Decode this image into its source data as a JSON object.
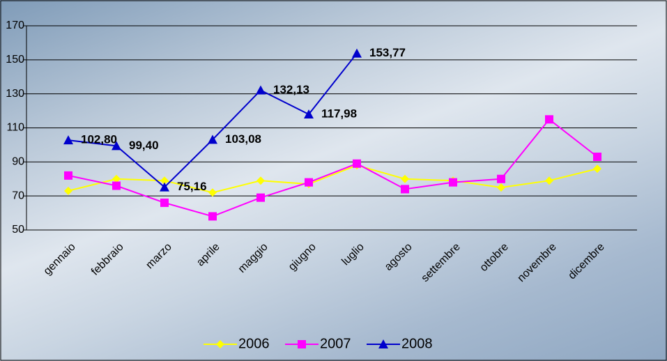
{
  "chart_data": {
    "type": "line",
    "categories": [
      "gennaio",
      "febbraio",
      "marzo",
      "aprile",
      "maggio",
      "giugno",
      "luglio",
      "agosto",
      "settembre",
      "ottobre",
      "novembre",
      "dicembre"
    ],
    "series": [
      {
        "name": "2006",
        "color": "#ffff00",
        "marker": "diamond",
        "values": [
          73,
          80,
          79,
          72,
          79,
          77,
          88,
          80,
          79,
          75,
          79,
          86
        ]
      },
      {
        "name": "2007",
        "color": "#ff00ff",
        "marker": "square",
        "values": [
          82,
          76,
          66,
          58,
          69,
          78,
          89,
          74,
          78,
          80,
          115,
          93
        ]
      },
      {
        "name": "2008",
        "color": "#0000cc",
        "marker": "triangle",
        "values": [
          102.8,
          99.4,
          75.16,
          103.08,
          132.13,
          117.98,
          153.77,
          null,
          null,
          null,
          null,
          null
        ],
        "value_labels": [
          "102,80",
          "99,40",
          "75,16",
          "103,08",
          "132,13",
          "117,98",
          "153,77",
          null,
          null,
          null,
          null,
          null
        ]
      }
    ],
    "ylim": [
      50,
      170
    ],
    "yticks": [
      50,
      70,
      90,
      110,
      130,
      150,
      170
    ],
    "grid": true,
    "legend": "bottom"
  }
}
